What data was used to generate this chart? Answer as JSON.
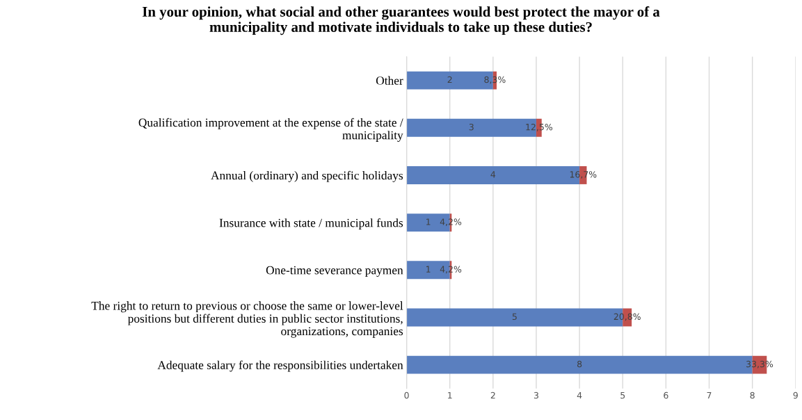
{
  "chart_data": {
    "type": "bar",
    "orientation": "horizontal",
    "stacked": true,
    "title": "In your opinion, what social and other guarantees would best protect the mayor of a\nmunicipality and motivate individuals to take up these duties?",
    "categories": [
      "Other",
      "Qualification improvement at the expense of the state /\nmunicipality",
      "Annual (ordinary) and specific holidays",
      "Insurance with state / municipal funds",
      "One-time severance paymen",
      "The right to return to previous or choose the same or lower-level\npositions but different duties in public sector institutions,\norganizations, companies",
      "Adequate salary for the responsibilities undertaken"
    ],
    "series": [
      {
        "color": "#5a7fbf",
        "values": [
          2,
          3,
          4,
          1,
          1,
          5,
          8
        ],
        "value_labels": [
          "2",
          "3",
          "4",
          "1",
          "1",
          "5",
          "8"
        ]
      },
      {
        "color": "#c0504d",
        "values": [
          0.083,
          0.125,
          0.167,
          0.042,
          0.042,
          0.208,
          0.333
        ],
        "value_labels": [
          "8,3%",
          "12,5%",
          "16,7%",
          "4,2%",
          "4,2%",
          "20,8%",
          "33,3%"
        ]
      }
    ],
    "xlim": [
      0,
      9
    ],
    "xticks": [
      0,
      1,
      2,
      3,
      4,
      5,
      6,
      7,
      8,
      9
    ],
    "grid": "x"
  }
}
